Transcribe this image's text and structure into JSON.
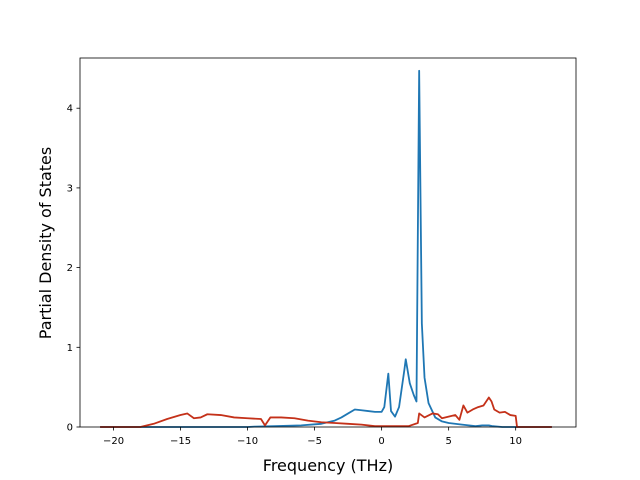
{
  "chart_data": {
    "type": "line",
    "title": "",
    "xlabel": "Frequency (THz)",
    "ylabel": "Partial Density of States",
    "xlim": [
      -22.5,
      14.5
    ],
    "ylim": [
      0,
      4.63
    ],
    "xticks": [
      -20,
      -15,
      -10,
      -5,
      0,
      5,
      10
    ],
    "yticks": [
      0,
      1,
      2,
      3,
      4
    ],
    "xtick_labels": [
      "−20",
      "−15",
      "−10",
      "−5",
      "0",
      "5",
      "10"
    ],
    "ytick_labels": [
      "0",
      "1",
      "2",
      "3",
      "4"
    ],
    "grid": false,
    "legend": "none",
    "series": [
      {
        "color": "#1f77b4",
        "points": [
          [
            -21,
            0
          ],
          [
            -10,
            0
          ],
          [
            -9.5,
            0.005
          ],
          [
            -8,
            0.01
          ],
          [
            -6,
            0.02
          ],
          [
            -4.5,
            0.04
          ],
          [
            -3.5,
            0.08
          ],
          [
            -3,
            0.12
          ],
          [
            -2.5,
            0.17
          ],
          [
            -2,
            0.22
          ],
          [
            -1.5,
            0.21
          ],
          [
            -1,
            0.2
          ],
          [
            -0.5,
            0.19
          ],
          [
            0,
            0.19
          ],
          [
            0.2,
            0.25
          ],
          [
            0.5,
            0.67
          ],
          [
            0.7,
            0.2
          ],
          [
            1,
            0.13
          ],
          [
            1.3,
            0.25
          ],
          [
            1.7,
            0.72
          ],
          [
            1.8,
            0.85
          ],
          [
            2.1,
            0.55
          ],
          [
            2.4,
            0.4
          ],
          [
            2.6,
            0.32
          ],
          [
            2.8,
            4.47
          ],
          [
            3.0,
            1.3
          ],
          [
            3.2,
            0.62
          ],
          [
            3.5,
            0.3
          ],
          [
            4,
            0.12
          ],
          [
            4.5,
            0.07
          ],
          [
            5,
            0.05
          ],
          [
            6,
            0.03
          ],
          [
            6.5,
            0.02
          ],
          [
            7,
            0.01
          ],
          [
            7.5,
            0.02
          ],
          [
            8,
            0.02
          ],
          [
            8.3,
            0.01
          ],
          [
            9,
            0
          ],
          [
            12.7,
            0
          ]
        ]
      },
      {
        "color": "#c43119",
        "points": [
          [
            -21,
            0
          ],
          [
            -18,
            0
          ],
          [
            -17,
            0.04
          ],
          [
            -16,
            0.1
          ],
          [
            -15,
            0.15
          ],
          [
            -14.5,
            0.17
          ],
          [
            -14,
            0.11
          ],
          [
            -13.5,
            0.12
          ],
          [
            -13,
            0.16
          ],
          [
            -12,
            0.15
          ],
          [
            -11,
            0.12
          ],
          [
            -10,
            0.11
          ],
          [
            -9,
            0.1
          ],
          [
            -8.7,
            0.02
          ],
          [
            -8.3,
            0.12
          ],
          [
            -7.5,
            0.12
          ],
          [
            -6.5,
            0.11
          ],
          [
            -5.5,
            0.08
          ],
          [
            -4.5,
            0.06
          ],
          [
            -3.5,
            0.05
          ],
          [
            -2.5,
            0.04
          ],
          [
            -1.5,
            0.03
          ],
          [
            -0.5,
            0.01
          ],
          [
            0.5,
            0.01
          ],
          [
            1,
            0.01
          ],
          [
            2,
            0.01
          ],
          [
            2.7,
            0.05
          ],
          [
            2.8,
            0.17
          ],
          [
            3.2,
            0.12
          ],
          [
            3.8,
            0.17
          ],
          [
            4.2,
            0.16
          ],
          [
            4.5,
            0.11
          ],
          [
            5,
            0.13
          ],
          [
            5.5,
            0.15
          ],
          [
            5.8,
            0.09
          ],
          [
            6.1,
            0.27
          ],
          [
            6.4,
            0.18
          ],
          [
            6.8,
            0.22
          ],
          [
            7.2,
            0.25
          ],
          [
            7.6,
            0.27
          ],
          [
            8,
            0.37
          ],
          [
            8.2,
            0.32
          ],
          [
            8.4,
            0.22
          ],
          [
            8.8,
            0.18
          ],
          [
            9.2,
            0.19
          ],
          [
            9.6,
            0.15
          ],
          [
            10,
            0.14
          ],
          [
            10.1,
            0
          ],
          [
            12.7,
            0
          ]
        ]
      }
    ]
  }
}
